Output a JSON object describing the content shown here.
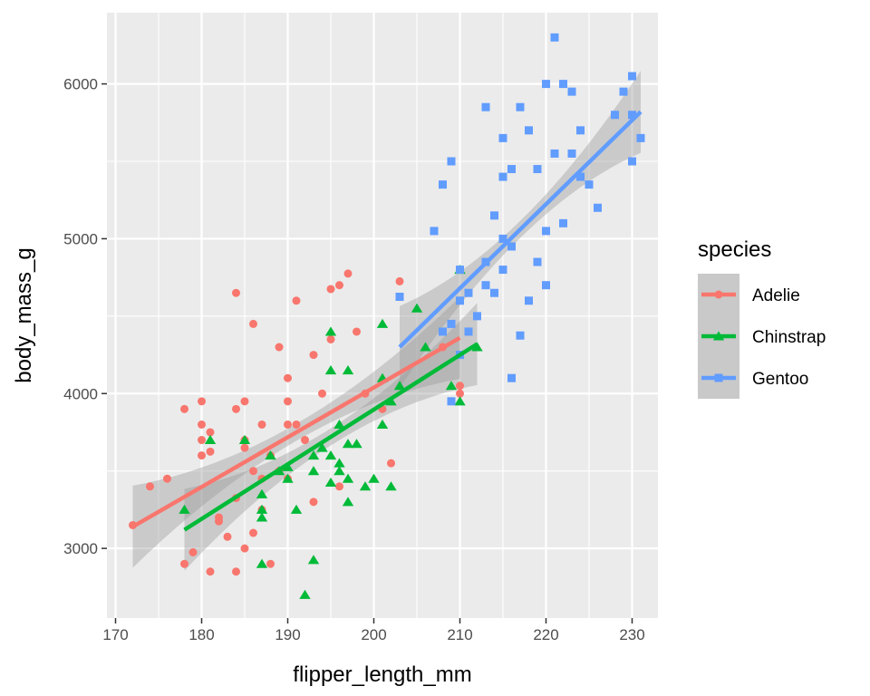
{
  "chart_data": {
    "type": "scatter",
    "xlabel": "flipper_length_mm",
    "ylabel": "body_mass_g",
    "xlim": [
      169,
      233
    ],
    "ylim": [
      2550,
      6460
    ],
    "x_ticks": [
      170,
      180,
      190,
      200,
      210,
      220,
      230
    ],
    "x_tick_labels": [
      "170",
      "180",
      "190",
      "200",
      "210",
      "220",
      "230"
    ],
    "y_ticks": [
      3000,
      4000,
      5000,
      6000
    ],
    "y_tick_labels": [
      "3000",
      "4000",
      "5000",
      "6000"
    ],
    "legend": {
      "title": "species",
      "position": "right"
    },
    "series": [
      {
        "name": "Adelie",
        "color": "#F8766D",
        "shape": "circle",
        "fit": {
          "x": [
            172,
            210
          ],
          "y": [
            3140,
            4360
          ]
        },
        "points": [
          [
            172,
            3150
          ],
          [
            174,
            3400
          ],
          [
            176,
            3450
          ],
          [
            178,
            2900
          ],
          [
            178,
            3900
          ],
          [
            179,
            2975
          ],
          [
            180,
            3950
          ],
          [
            180,
            3800
          ],
          [
            180,
            3600
          ],
          [
            180,
            3700
          ],
          [
            181,
            2850
          ],
          [
            181,
            3750
          ],
          [
            181,
            3625
          ],
          [
            182,
            3175
          ],
          [
            182,
            3200
          ],
          [
            183,
            3075
          ],
          [
            184,
            4650
          ],
          [
            184,
            3900
          ],
          [
            184,
            2850
          ],
          [
            184,
            3325
          ],
          [
            185,
            3950
          ],
          [
            185,
            3650
          ],
          [
            185,
            3000
          ],
          [
            185,
            3700
          ],
          [
            186,
            4450
          ],
          [
            186,
            3500
          ],
          [
            186,
            3100
          ],
          [
            187,
            3800
          ],
          [
            187,
            3450
          ],
          [
            187,
            3250
          ],
          [
            188,
            2900
          ],
          [
            188,
            3600
          ],
          [
            189,
            4300
          ],
          [
            189,
            3500
          ],
          [
            190,
            4100
          ],
          [
            190,
            3950
          ],
          [
            190,
            3450
          ],
          [
            190,
            3800
          ],
          [
            191,
            4600
          ],
          [
            191,
            3800
          ],
          [
            192,
            3700
          ],
          [
            193,
            4250
          ],
          [
            193,
            3300
          ],
          [
            194,
            4000
          ],
          [
            195,
            4350
          ],
          [
            195,
            4675
          ],
          [
            196,
            4700
          ],
          [
            196,
            3400
          ],
          [
            197,
            4775
          ],
          [
            198,
            4400
          ],
          [
            199,
            4000
          ],
          [
            201,
            3900
          ],
          [
            202,
            3550
          ],
          [
            203,
            4725
          ],
          [
            208,
            4300
          ],
          [
            210,
            4000
          ],
          [
            210,
            4050
          ]
        ]
      },
      {
        "name": "Chinstrap",
        "color": "#00BA38",
        "shape": "triangle",
        "fit": {
          "x": [
            178,
            212
          ],
          "y": [
            3120,
            4320
          ]
        },
        "points": [
          [
            178,
            3250
          ],
          [
            181,
            3700
          ],
          [
            185,
            3700
          ],
          [
            187,
            3350
          ],
          [
            187,
            3200
          ],
          [
            187,
            2900
          ],
          [
            187,
            3250
          ],
          [
            188,
            3600
          ],
          [
            189,
            3500
          ],
          [
            190,
            3450
          ],
          [
            190,
            3525
          ],
          [
            191,
            3250
          ],
          [
            192,
            2700
          ],
          [
            193,
            2925
          ],
          [
            193,
            3500
          ],
          [
            193,
            3600
          ],
          [
            194,
            3650
          ],
          [
            195,
            3425
          ],
          [
            195,
            4400
          ],
          [
            195,
            4150
          ],
          [
            195,
            3600
          ],
          [
            196,
            3550
          ],
          [
            196,
            3800
          ],
          [
            196,
            3500
          ],
          [
            197,
            3675
          ],
          [
            197,
            3450
          ],
          [
            197,
            4150
          ],
          [
            197,
            3300
          ],
          [
            198,
            3675
          ],
          [
            199,
            3400
          ],
          [
            200,
            3450
          ],
          [
            201,
            4450
          ],
          [
            201,
            4100
          ],
          [
            201,
            3800
          ],
          [
            202,
            3950
          ],
          [
            202,
            3400
          ],
          [
            203,
            4050
          ],
          [
            205,
            4550
          ],
          [
            206,
            4300
          ],
          [
            209,
            4050
          ],
          [
            210,
            4800
          ],
          [
            210,
            3950
          ],
          [
            212,
            4300
          ]
        ]
      },
      {
        "name": "Gentoo",
        "color": "#619CFF",
        "shape": "square",
        "fit": {
          "x": [
            203,
            231
          ],
          "y": [
            4300,
            5820
          ]
        },
        "points": [
          [
            203,
            4625
          ],
          [
            207,
            5050
          ],
          [
            208,
            4400
          ],
          [
            208,
            5350
          ],
          [
            209,
            3950
          ],
          [
            209,
            4450
          ],
          [
            209,
            5500
          ],
          [
            210,
            4800
          ],
          [
            210,
            4600
          ],
          [
            210,
            4250
          ],
          [
            211,
            4650
          ],
          [
            211,
            4400
          ],
          [
            212,
            4500
          ],
          [
            213,
            4850
          ],
          [
            213,
            4700
          ],
          [
            213,
            5850
          ],
          [
            214,
            4650
          ],
          [
            214,
            5150
          ],
          [
            215,
            5650
          ],
          [
            215,
            5400
          ],
          [
            215,
            5000
          ],
          [
            215,
            4800
          ],
          [
            216,
            4100
          ],
          [
            216,
            5450
          ],
          [
            216,
            4950
          ],
          [
            217,
            4375
          ],
          [
            217,
            5850
          ],
          [
            218,
            5700
          ],
          [
            218,
            4600
          ],
          [
            219,
            5450
          ],
          [
            219,
            4850
          ],
          [
            220,
            6000
          ],
          [
            220,
            5050
          ],
          [
            220,
            4700
          ],
          [
            221,
            6300
          ],
          [
            221,
            5550
          ],
          [
            222,
            6000
          ],
          [
            222,
            5100
          ],
          [
            223,
            5950
          ],
          [
            223,
            5550
          ],
          [
            224,
            5700
          ],
          [
            224,
            5400
          ],
          [
            225,
            5350
          ],
          [
            226,
            5200
          ],
          [
            228,
            5800
          ],
          [
            229,
            5950
          ],
          [
            230,
            5800
          ],
          [
            230,
            6050
          ],
          [
            230,
            5500
          ],
          [
            231,
            5650
          ]
        ]
      }
    ]
  }
}
